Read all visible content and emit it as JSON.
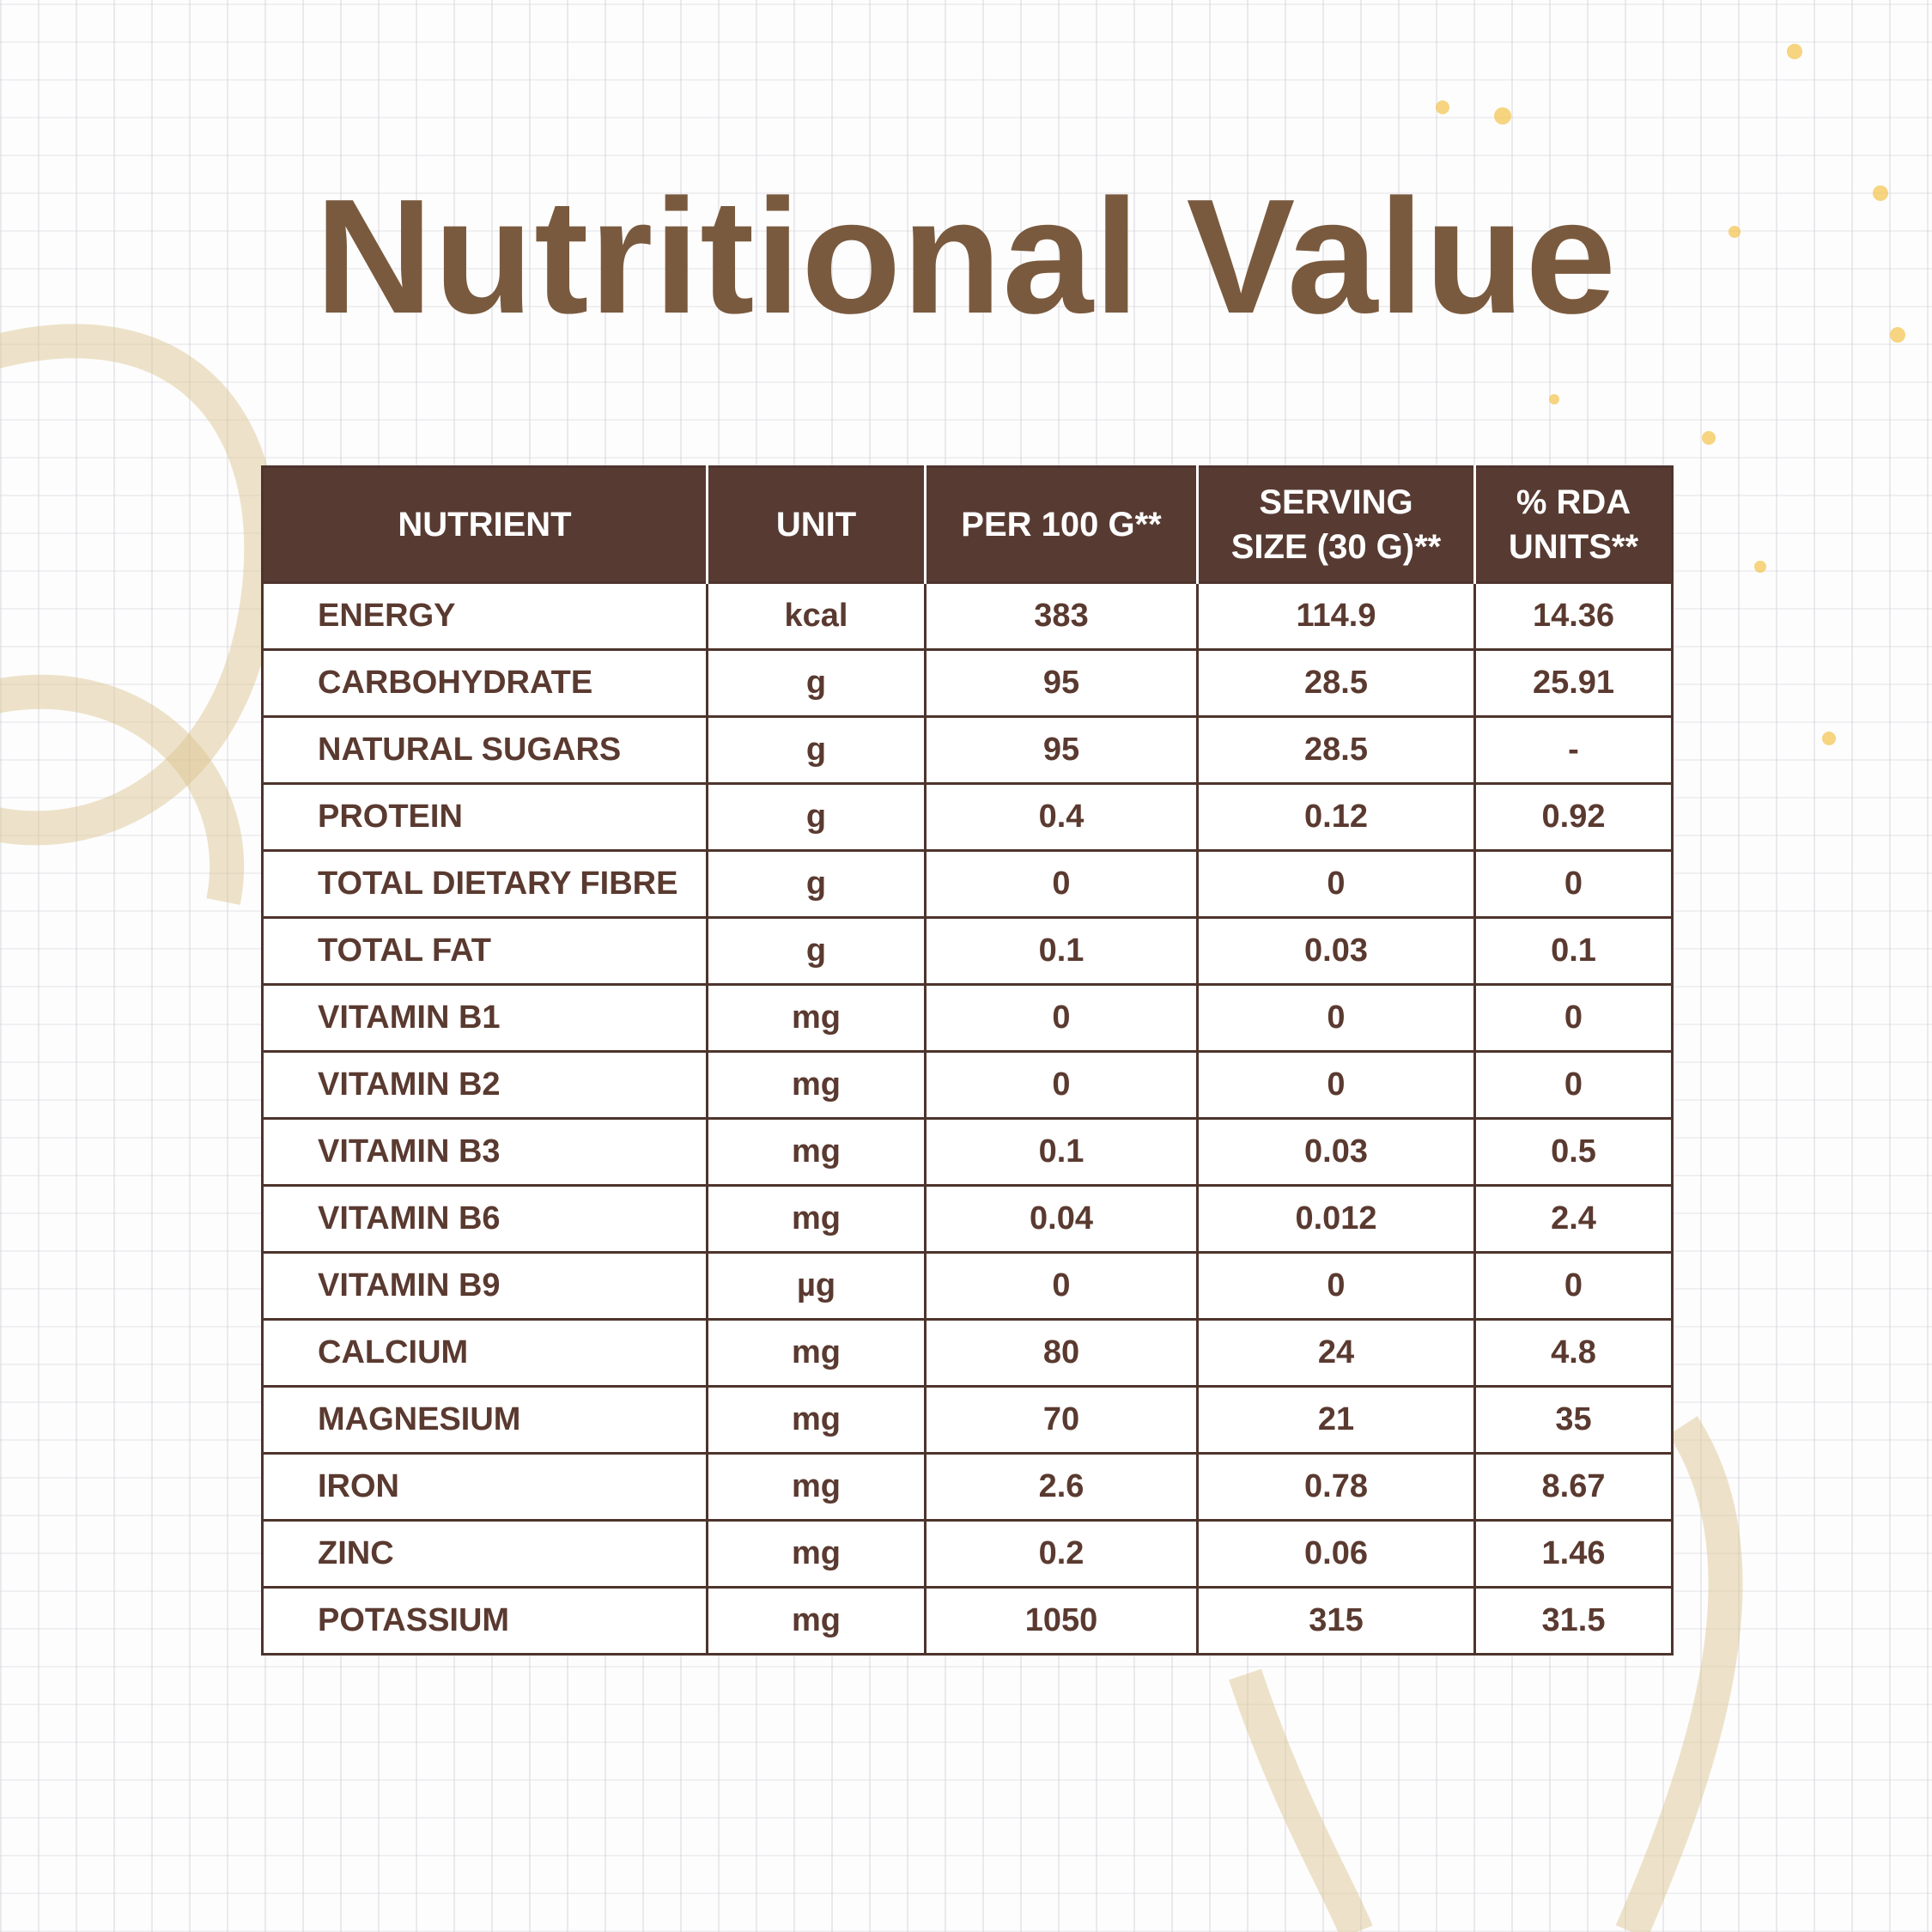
{
  "title": "Nutritional Value",
  "table": {
    "header": [
      "NUTRIENT",
      "UNIT",
      "PER 100 G**",
      "SERVING SIZE (30 G)**",
      "% RDA UNITS**"
    ],
    "rows": [
      [
        "ENERGY",
        "kcal",
        "383",
        "114.9",
        "14.36"
      ],
      [
        "CARBOHYDRATE",
        "g",
        "95",
        "28.5",
        "25.91"
      ],
      [
        "NATURAL SUGARS",
        "g",
        "95",
        "28.5",
        "-"
      ],
      [
        "PROTEIN",
        "g",
        "0.4",
        "0.12",
        "0.92"
      ],
      [
        "TOTAL DIETARY FIBRE",
        "g",
        "0",
        "0",
        "0"
      ],
      [
        "TOTAL FAT",
        "g",
        "0.1",
        "0.03",
        "0.1"
      ],
      [
        "VITAMIN B1",
        "mg",
        "0",
        "0",
        "0"
      ],
      [
        "VITAMIN B2",
        "mg",
        "0",
        "0",
        "0"
      ],
      [
        "VITAMIN B3",
        "mg",
        "0.1",
        "0.03",
        "0.5"
      ],
      [
        "VITAMIN B6",
        "mg",
        "0.04",
        "0.012",
        "2.4"
      ],
      [
        "VITAMIN B9",
        "µg",
        "0",
        "0",
        "0"
      ],
      [
        "CALCIUM",
        "mg",
        "80",
        "24",
        "4.8"
      ],
      [
        "MAGNESIUM",
        "mg",
        "70",
        "21",
        "35"
      ],
      [
        "IRON",
        "mg",
        "2.6",
        "0.78",
        "8.67"
      ],
      [
        "ZINC",
        "mg",
        "0.2",
        "0.06",
        "1.46"
      ],
      [
        "POTASSIUM",
        "mg",
        "1050",
        "315",
        "31.5"
      ]
    ]
  }
}
